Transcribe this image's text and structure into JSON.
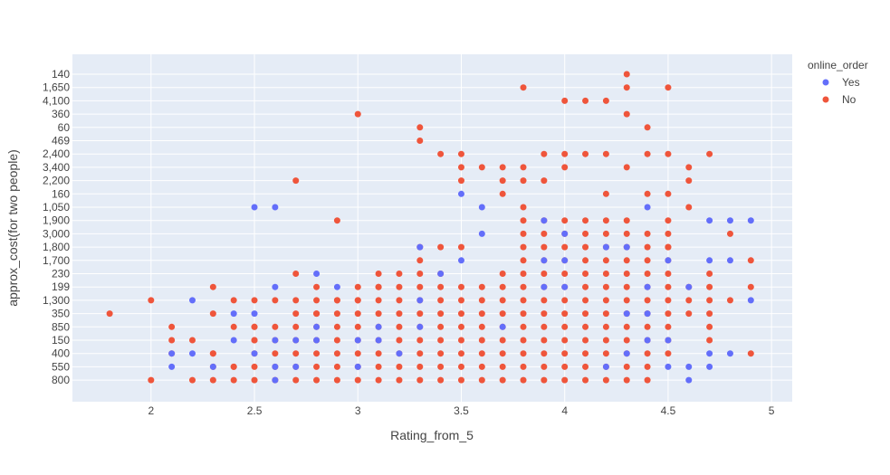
{
  "chart_data": {
    "type": "scatter",
    "title": "",
    "xlabel": "Rating_from_5",
    "ylabel": "approx_cost(for two people)",
    "xlim": [
      1.62,
      5.1
    ],
    "x_ticks": [
      "2",
      "2.5",
      "3",
      "3.5",
      "4",
      "4.5",
      "5"
    ],
    "y_categories": [
      "800",
      "550",
      "400",
      "150",
      "850",
      "350",
      "1,300",
      "199",
      "230",
      "1,700",
      "1,800",
      "3,000",
      "1,900",
      "1,050",
      "160",
      "2,200",
      "3,400",
      "2,400",
      "469",
      "60",
      "360",
      "4,100",
      "1,650",
      "140"
    ],
    "grid": true,
    "legend": {
      "title": "online_order",
      "placement": "right"
    },
    "colors": {
      "plot_bg": "#E5ECF6",
      "grid": "#ffffff",
      "Yes": "#636EFA",
      "No": "#EF553B"
    },
    "series": [
      {
        "name": "Yes",
        "color": "#636EFA",
        "points": [
          [
            2.1,
            "400"
          ],
          [
            2.1,
            "550"
          ],
          [
            2.2,
            "1,300"
          ],
          [
            2.2,
            "400"
          ],
          [
            2.3,
            "550"
          ],
          [
            2.4,
            "150"
          ],
          [
            2.4,
            "350"
          ],
          [
            2.5,
            "1,050"
          ],
          [
            2.5,
            "350"
          ],
          [
            2.5,
            "400"
          ],
          [
            2.6,
            "1,050"
          ],
          [
            2.6,
            "199"
          ],
          [
            2.6,
            "150"
          ],
          [
            2.6,
            "550"
          ],
          [
            2.6,
            "800"
          ],
          [
            2.7,
            "150"
          ],
          [
            2.7,
            "550"
          ],
          [
            2.8,
            "230"
          ],
          [
            2.8,
            "850"
          ],
          [
            2.8,
            "150"
          ],
          [
            2.9,
            "199"
          ],
          [
            3.0,
            "150"
          ],
          [
            3.0,
            "550"
          ],
          [
            3.1,
            "850"
          ],
          [
            3.1,
            "150"
          ],
          [
            3.2,
            "400"
          ],
          [
            3.3,
            "1,800"
          ],
          [
            3.3,
            "1,300"
          ],
          [
            3.3,
            "850"
          ],
          [
            3.4,
            "230"
          ],
          [
            3.5,
            "160"
          ],
          [
            3.5,
            "1,700"
          ],
          [
            3.6,
            "1,050"
          ],
          [
            3.6,
            "3,000"
          ],
          [
            3.7,
            "850"
          ],
          [
            3.9,
            "1,900"
          ],
          [
            3.9,
            "1,700"
          ],
          [
            3.9,
            "199"
          ],
          [
            4.0,
            "3,000"
          ],
          [
            4.0,
            "1,700"
          ],
          [
            4.0,
            "199"
          ],
          [
            4.2,
            "1,800"
          ],
          [
            4.2,
            "550"
          ],
          [
            4.3,
            "1,800"
          ],
          [
            4.3,
            "350"
          ],
          [
            4.3,
            "400"
          ],
          [
            4.4,
            "1,050"
          ],
          [
            4.4,
            "199"
          ],
          [
            4.4,
            "350"
          ],
          [
            4.4,
            "150"
          ],
          [
            4.5,
            "1,700"
          ],
          [
            4.5,
            "150"
          ],
          [
            4.5,
            "550"
          ],
          [
            4.6,
            "199"
          ],
          [
            4.6,
            "550"
          ],
          [
            4.6,
            "800"
          ],
          [
            4.7,
            "1,900"
          ],
          [
            4.7,
            "1,700"
          ],
          [
            4.7,
            "400"
          ],
          [
            4.7,
            "550"
          ],
          [
            4.8,
            "1,900"
          ],
          [
            4.8,
            "1,700"
          ],
          [
            4.8,
            "400"
          ],
          [
            4.9,
            "1,900"
          ],
          [
            4.9,
            "1,300"
          ]
        ]
      },
      {
        "name": "No",
        "color": "#EF553B",
        "points": [
          [
            1.8,
            "350"
          ],
          [
            2.0,
            "1,300"
          ],
          [
            2.0,
            "800"
          ],
          [
            2.1,
            "850"
          ],
          [
            2.1,
            "400"
          ],
          [
            2.1,
            "150"
          ],
          [
            2.2,
            "150"
          ],
          [
            2.2,
            "800"
          ],
          [
            2.3,
            "199"
          ],
          [
            2.3,
            "350"
          ],
          [
            2.3,
            "400"
          ],
          [
            2.4,
            "1,300"
          ],
          [
            2.4,
            "850"
          ],
          [
            2.4,
            "550"
          ],
          [
            2.5,
            "1,300"
          ],
          [
            2.5,
            "150"
          ],
          [
            2.5,
            "850"
          ],
          [
            2.6,
            "1,300"
          ],
          [
            2.7,
            "2,200"
          ],
          [
            2.7,
            "230"
          ],
          [
            2.7,
            "1,300"
          ],
          [
            2.8,
            "199"
          ],
          [
            2.8,
            "350"
          ],
          [
            2.9,
            "1,900"
          ],
          [
            2.9,
            "1,300"
          ],
          [
            3.0,
            "360"
          ],
          [
            3.0,
            "1,300"
          ],
          [
            3.1,
            "230"
          ],
          [
            3.1,
            "199"
          ],
          [
            3.2,
            "230"
          ],
          [
            3.3,
            "60"
          ],
          [
            3.3,
            "469"
          ],
          [
            3.3,
            "1,800"
          ],
          [
            3.3,
            "1,700"
          ],
          [
            3.4,
            "2,400"
          ],
          [
            3.4,
            "1,800"
          ],
          [
            3.5,
            "2,400"
          ],
          [
            3.5,
            "3,400"
          ],
          [
            3.5,
            "2,200"
          ],
          [
            3.5,
            "1,800"
          ],
          [
            3.6,
            "3,400"
          ],
          [
            3.7,
            "3,400"
          ],
          [
            3.7,
            "2,200"
          ],
          [
            3.7,
            "160"
          ],
          [
            3.8,
            "1,650"
          ],
          [
            3.8,
            "3,400"
          ],
          [
            3.8,
            "2,200"
          ],
          [
            3.8,
            "1,050"
          ],
          [
            3.9,
            "2,400"
          ],
          [
            3.9,
            "2,200"
          ],
          [
            4.0,
            "4,100"
          ],
          [
            4.0,
            "2,400"
          ],
          [
            4.0,
            "3,400"
          ],
          [
            4.1,
            "4,100"
          ],
          [
            4.1,
            "2,400"
          ],
          [
            4.2,
            "4,100"
          ],
          [
            4.2,
            "2,400"
          ],
          [
            4.2,
            "160"
          ],
          [
            4.3,
            "140"
          ],
          [
            4.3,
            "1,650"
          ],
          [
            4.3,
            "360"
          ],
          [
            4.3,
            "3,400"
          ],
          [
            4.4,
            "60"
          ],
          [
            4.4,
            "2,400"
          ],
          [
            4.4,
            "160"
          ],
          [
            4.5,
            "1,650"
          ],
          [
            4.5,
            "2,400"
          ],
          [
            4.5,
            "160"
          ],
          [
            4.5,
            "1,800"
          ],
          [
            4.6,
            "3,400"
          ],
          [
            4.6,
            "2,200"
          ],
          [
            4.6,
            "1,050"
          ],
          [
            4.7,
            "2,400"
          ],
          [
            4.8,
            "3,000"
          ],
          [
            4.8,
            "1,300"
          ],
          [
            4.9,
            "1,700"
          ],
          [
            4.9,
            "199"
          ],
          [
            4.9,
            "400"
          ]
        ],
        "dense_columns": [
          {
            "x": 3.4,
            "from": "800",
            "to": "230"
          },
          {
            "x": 3.5,
            "from": "800",
            "to": "199"
          },
          {
            "x": 3.6,
            "from": "800",
            "to": "199"
          },
          {
            "x": 3.7,
            "from": "800",
            "to": "230"
          },
          {
            "x": 3.8,
            "from": "800",
            "to": "1,900"
          },
          {
            "x": 3.9,
            "from": "800",
            "to": "1,900"
          },
          {
            "x": 4.0,
            "from": "800",
            "to": "1,900"
          },
          {
            "x": 4.1,
            "from": "800",
            "to": "1,900"
          },
          {
            "x": 4.2,
            "from": "800",
            "to": "1,900"
          },
          {
            "x": 4.3,
            "from": "800",
            "to": "1,900"
          },
          {
            "x": 4.4,
            "from": "800",
            "to": "3,000"
          },
          {
            "x": 4.5,
            "from": "400",
            "to": "1,900"
          },
          {
            "x": 4.6,
            "from": "350",
            "to": "199"
          },
          {
            "x": 4.7,
            "from": "150",
            "to": "230"
          },
          {
            "x": 3.3,
            "from": "800",
            "to": "230"
          },
          {
            "x": 3.2,
            "from": "800",
            "to": "199"
          },
          {
            "x": 3.1,
            "from": "800",
            "to": "199"
          },
          {
            "x": 3.0,
            "from": "800",
            "to": "199"
          },
          {
            "x": 2.9,
            "from": "800",
            "to": "1,300"
          },
          {
            "x": 2.8,
            "from": "800",
            "to": "1,300"
          },
          {
            "x": 2.7,
            "from": "800",
            "to": "350"
          },
          {
            "x": 2.6,
            "from": "800",
            "to": "850"
          },
          {
            "x": 2.5,
            "from": "800",
            "to": "850"
          },
          {
            "x": 2.4,
            "from": "800",
            "to": "550"
          },
          {
            "x": 2.3,
            "from": "800",
            "to": "400"
          }
        ]
      }
    ]
  }
}
